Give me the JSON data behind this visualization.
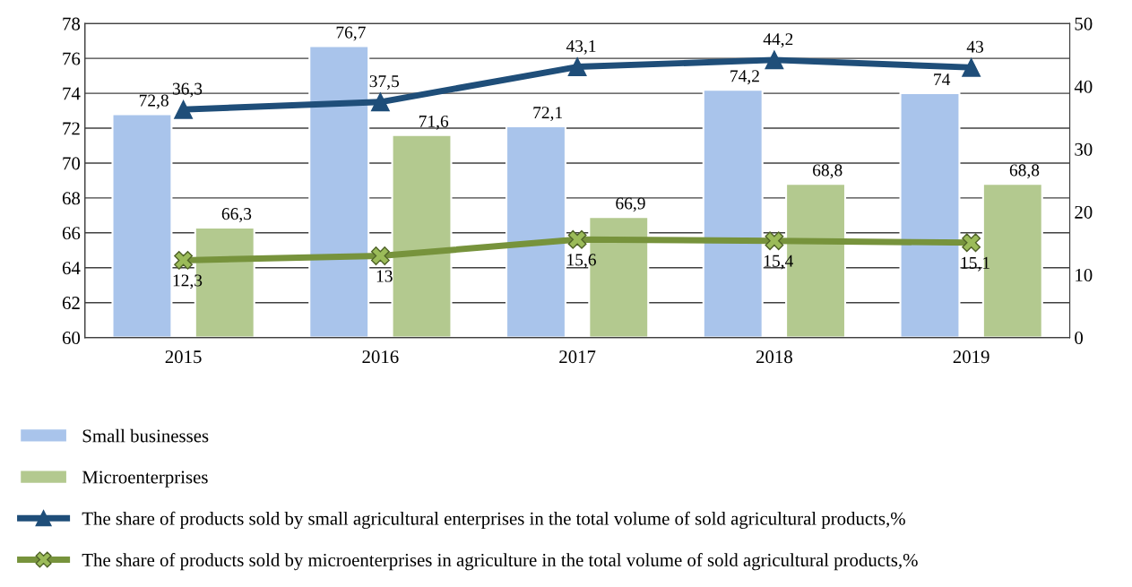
{
  "chart_data": {
    "type": "bar",
    "categories": [
      "2015",
      "2016",
      "2017",
      "2018",
      "2019"
    ],
    "series": [
      {
        "name": "Small businesses",
        "color": "#a9c4eb",
        "values": [
          72.8,
          76.7,
          72.1,
          74.2,
          74
        ],
        "value_labels": [
          "72,8",
          "76,7",
          "72,1",
          "74,2",
          "74"
        ]
      },
      {
        "name": "Microenterprises",
        "color": "#b3c98f",
        "values": [
          66.3,
          71.6,
          66.9,
          68.8,
          68.8
        ],
        "value_labels": [
          "66,3",
          "71,6",
          "66,9",
          "68,8",
          "68,8"
        ]
      },
      {
        "name": "The share of products sold by small agricultural enterprises in the total volume of sold agricultural products,%",
        "type": "line",
        "axis": "y2",
        "marker": "triangle",
        "color": "#1f4e79",
        "values": [
          36.3,
          37.5,
          43.1,
          44.2,
          43
        ],
        "value_labels": [
          "36,3",
          "37,5",
          "43,1",
          "44,2",
          "43"
        ]
      },
      {
        "name": "The share of products sold by microenterprises in agriculture in the total volume of sold agricultural products,%",
        "type": "line",
        "axis": "y2",
        "marker": "cross",
        "color": "#77933c",
        "values": [
          12.3,
          13,
          15.6,
          15.4,
          15.1
        ],
        "value_labels": [
          "12,3",
          "13",
          "15,6",
          "15,4",
          "15,1"
        ]
      }
    ],
    "ylim": [
      60,
      78
    ],
    "yticks": [
      60,
      62,
      64,
      66,
      68,
      70,
      72,
      74,
      76,
      78
    ],
    "y2lim": [
      0,
      50
    ],
    "y2ticks": [
      0,
      10,
      20,
      30,
      40,
      50
    ],
    "grid": "y",
    "legend": "bottom"
  }
}
